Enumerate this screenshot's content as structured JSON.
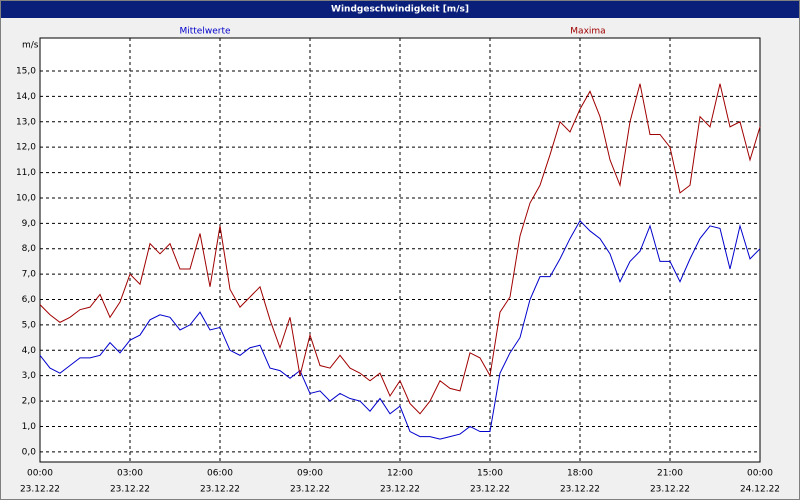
{
  "chart_data": {
    "type": "line",
    "title": "Windgeschwindigkeit [m/s]",
    "y_label": "m/s",
    "x": [
      0,
      20,
      40,
      60,
      80,
      100,
      120,
      140,
      160,
      180,
      200,
      220,
      240,
      260,
      280,
      300,
      320,
      340,
      360,
      380,
      400,
      420,
      440,
      460,
      480,
      500,
      520,
      540,
      560,
      580,
      600,
      620,
      640,
      660,
      680,
      700,
      720,
      740,
      760,
      780,
      800,
      820,
      840,
      860,
      880,
      900,
      920,
      940,
      960,
      980,
      1000,
      1020,
      1040,
      1060,
      1080,
      1100,
      1120,
      1140,
      1160,
      1180,
      1200,
      1220,
      1240,
      1260,
      1280,
      1300,
      1320,
      1340,
      1360,
      1380,
      1400,
      1420,
      1440
    ],
    "series": [
      {
        "name": "Mittelwerte",
        "color": "#0000cc",
        "values": [
          3.8,
          3.3,
          3.1,
          3.4,
          3.7,
          3.7,
          3.8,
          4.3,
          3.9,
          4.4,
          4.6,
          5.2,
          5.4,
          5.3,
          4.8,
          5.0,
          5.5,
          4.8,
          4.9,
          4.0,
          3.8,
          4.1,
          4.2,
          3.3,
          3.2,
          2.9,
          3.2,
          2.3,
          2.4,
          2.0,
          2.3,
          2.1,
          2.0,
          1.6,
          2.1,
          1.5,
          1.8,
          0.8,
          0.6,
          0.6,
          0.5,
          0.6,
          0.7,
          1.0,
          0.8,
          0.8,
          3.1,
          3.9,
          4.5,
          6.0,
          6.9,
          6.9,
          7.6,
          8.4,
          9.1,
          8.7,
          8.4,
          7.8,
          6.7,
          7.5,
          7.9,
          8.9,
          7.5,
          7.5,
          6.7,
          7.6,
          8.4,
          8.9,
          8.8,
          7.2,
          8.9,
          7.6,
          8.0
        ]
      },
      {
        "name": "Maxima",
        "color": "#a00000",
        "values": [
          5.8,
          5.4,
          5.1,
          5.3,
          5.6,
          5.7,
          6.2,
          5.3,
          5.9,
          7.0,
          6.6,
          8.2,
          7.8,
          8.2,
          7.2,
          7.2,
          8.6,
          6.5,
          8.9,
          6.4,
          5.7,
          6.1,
          6.5,
          5.2,
          4.1,
          5.3,
          3.0,
          4.6,
          3.4,
          3.3,
          3.8,
          3.3,
          3.1,
          2.8,
          3.1,
          2.2,
          2.8,
          1.9,
          1.5,
          2.0,
          2.8,
          2.5,
          2.4,
          3.9,
          3.7,
          3.0,
          5.5,
          6.1,
          8.5,
          9.8,
          10.5,
          11.7,
          13.0,
          12.6,
          13.5,
          14.2,
          13.2,
          11.5,
          10.5,
          13.0,
          14.5,
          12.5,
          12.5,
          12.0,
          10.2,
          10.5,
          13.2,
          12.8,
          14.5,
          12.8,
          13.0,
          11.5,
          12.8
        ]
      }
    ],
    "xlim": [
      0,
      1440
    ],
    "xticks": [
      {
        "value": 0,
        "label": "00:00",
        "date": "23.12.22"
      },
      {
        "value": 180,
        "label": "03:00",
        "date": "23.12.22"
      },
      {
        "value": 360,
        "label": "06:00",
        "date": "23.12.22"
      },
      {
        "value": 540,
        "label": "09:00",
        "date": "23.12.22"
      },
      {
        "value": 720,
        "label": "12:00",
        "date": "23.12.22"
      },
      {
        "value": 900,
        "label": "15:00",
        "date": "23.12.22"
      },
      {
        "value": 1080,
        "label": "18:00",
        "date": "23.12.22"
      },
      {
        "value": 1260,
        "label": "21:00",
        "date": "23.12.22"
      },
      {
        "value": 1440,
        "label": "00:00",
        "date": "24.12.22"
      }
    ],
    "ylim": [
      -0.4,
      16.3
    ],
    "yticks": [
      {
        "value": 0,
        "label": "0,0"
      },
      {
        "value": 1,
        "label": "1,0"
      },
      {
        "value": 2,
        "label": "2,0"
      },
      {
        "value": 3,
        "label": "3,0"
      },
      {
        "value": 4,
        "label": "4,0"
      },
      {
        "value": 5,
        "label": "5,0"
      },
      {
        "value": 6,
        "label": "6,0"
      },
      {
        "value": 7,
        "label": "7,0"
      },
      {
        "value": 8,
        "label": "8,0"
      },
      {
        "value": 9,
        "label": "9,0"
      },
      {
        "value": 10,
        "label": "10,0"
      },
      {
        "value": 11,
        "label": "11,0"
      },
      {
        "value": 12,
        "label": "12,0"
      },
      {
        "value": 13,
        "label": "13,0"
      },
      {
        "value": 14,
        "label": "14,0"
      },
      {
        "value": 15,
        "label": "15,0"
      }
    ],
    "grid": true
  }
}
